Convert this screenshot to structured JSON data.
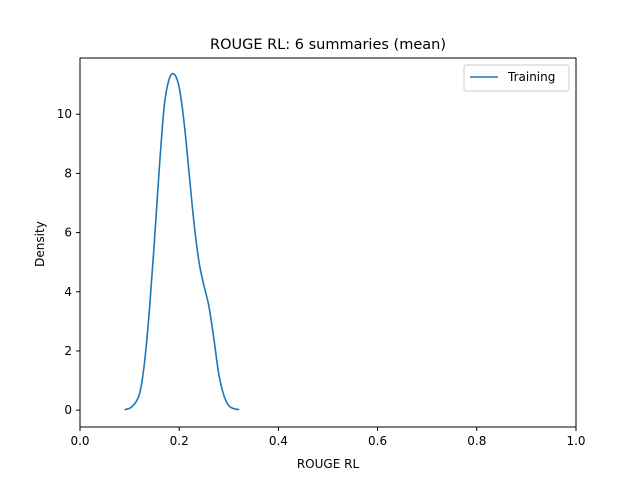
{
  "chart_data": {
    "type": "line",
    "title": "ROUGE RL: 6 summaries (mean)",
    "xlabel": "ROUGE RL",
    "ylabel": "Density",
    "xlim": [
      0.0,
      1.0
    ],
    "ylim": [
      -0.57,
      11.9
    ],
    "xticks": [
      0.0,
      0.2,
      0.4,
      0.6,
      0.8,
      1.0
    ],
    "xtick_labels": [
      "0.0",
      "0.2",
      "0.4",
      "0.6",
      "0.8",
      "1.0"
    ],
    "yticks": [
      0,
      2,
      4,
      6,
      8,
      10
    ],
    "ytick_labels": [
      "0",
      "2",
      "4",
      "6",
      "8",
      "10"
    ],
    "grid": false,
    "legend_position": "top-right",
    "series": [
      {
        "name": "Training",
        "color": "#1f77b4",
        "x": [
          0.091,
          0.105,
          0.12,
          0.13,
          0.14,
          0.15,
          0.16,
          0.17,
          0.18,
          0.19,
          0.2,
          0.21,
          0.22,
          0.23,
          0.24,
          0.25,
          0.26,
          0.27,
          0.28,
          0.29,
          0.3,
          0.31,
          0.32
        ],
        "y": [
          0.02,
          0.12,
          0.55,
          1.6,
          3.4,
          5.7,
          8.2,
          10.3,
          11.2,
          11.35,
          10.9,
          9.7,
          8.0,
          6.3,
          5.0,
          4.2,
          3.5,
          2.4,
          1.2,
          0.5,
          0.15,
          0.05,
          0.02
        ]
      }
    ]
  }
}
